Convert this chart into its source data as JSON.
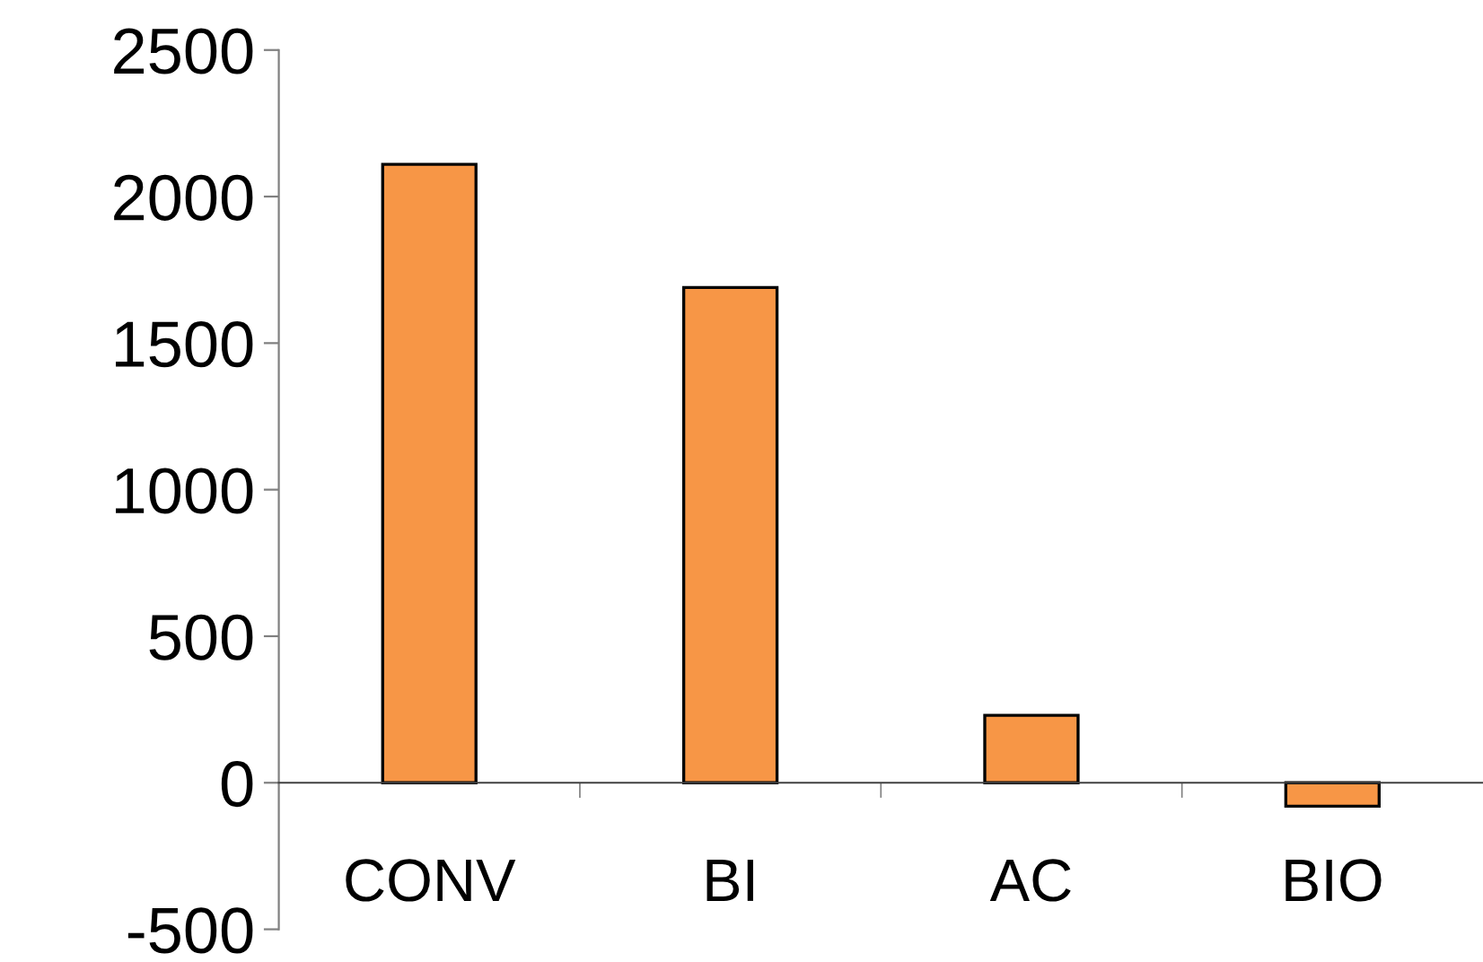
{
  "chart_data": {
    "type": "bar",
    "categories": [
      "CONV",
      "BI",
      "AC",
      "BIO"
    ],
    "values": [
      2110,
      1690,
      230,
      -80
    ],
    "color": "#f79646",
    "ylim": [
      -500,
      2500
    ],
    "yticks": [
      -500,
      0,
      500,
      1000,
      1500,
      2000,
      2500
    ],
    "grid": false,
    "legend": false
  }
}
